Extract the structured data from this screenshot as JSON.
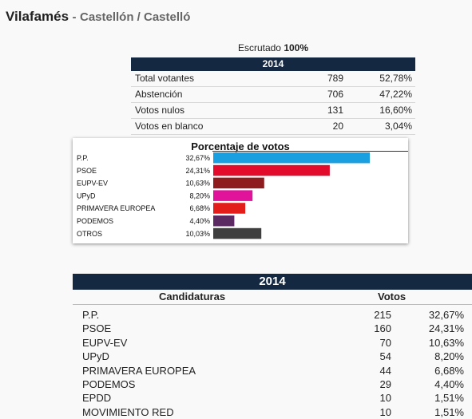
{
  "header": {
    "place": "Vilafamés",
    "separator": "-",
    "region": "Castellón / Castelló"
  },
  "scrutiny": {
    "label": "Escrutado",
    "value": "100%"
  },
  "summary": {
    "year": "2014",
    "rows": [
      {
        "label": "Total votantes",
        "n": "789",
        "pct": "52,78%"
      },
      {
        "label": "Abstención",
        "n": "706",
        "pct": "47,22%"
      },
      {
        "label": "Votos nulos",
        "n": "131",
        "pct": "16,60%"
      },
      {
        "label": "Votos en blanco",
        "n": "20",
        "pct": "3,04%"
      }
    ]
  },
  "chart_data": {
    "type": "bar",
    "title": "Porcentaje de votos",
    "categories": [
      "P.P.",
      "PSOE",
      "EUPV-EV",
      "UPyD",
      "PRIMAVERA EUROPEA",
      "PODEMOS",
      "OTROS"
    ],
    "values": [
      32.67,
      24.31,
      10.63,
      8.2,
      6.68,
      4.4,
      10.03
    ],
    "value_labels": [
      "32,67%",
      "24,31%",
      "10,63%",
      "8,20%",
      "6,68%",
      "4,40%",
      "10,03%"
    ],
    "colors": [
      "#1a9fe0",
      "#e30b2c",
      "#8e1b1e",
      "#e0139a",
      "#e31d1a",
      "#5c2a63",
      "#3f3f3f"
    ],
    "orientation": "horizontal",
    "legend": "none"
  },
  "results": {
    "year": "2014",
    "col_party": "Candidaturas",
    "col_votes": "Votos",
    "rows": [
      {
        "party": "P.P.",
        "votes": "215",
        "pct": "32,67%"
      },
      {
        "party": "PSOE",
        "votes": "160",
        "pct": "24,31%"
      },
      {
        "party": "EUPV-EV",
        "votes": "70",
        "pct": "10,63%"
      },
      {
        "party": "UPyD",
        "votes": "54",
        "pct": "8,20%"
      },
      {
        "party": "PRIMAVERA EUROPEA",
        "votes": "44",
        "pct": "6,68%"
      },
      {
        "party": "PODEMOS",
        "votes": "29",
        "pct": "4,40%"
      },
      {
        "party": "EPDD",
        "votes": "10",
        "pct": "1,51%"
      },
      {
        "party": "MOVIMIENTO RED",
        "votes": "10",
        "pct": "1,51%"
      }
    ]
  }
}
